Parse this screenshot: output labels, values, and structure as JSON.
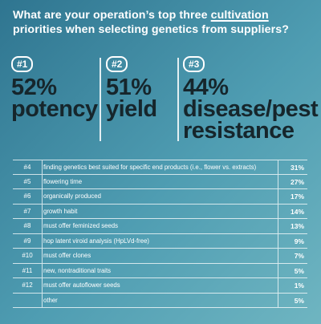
{
  "question": {
    "before": "What are your operation’s top three ",
    "underlined": "cultivation",
    "after": " priorities when selecting genetics from suppliers?"
  },
  "chart_data": {
    "type": "table",
    "top": [
      {
        "rank": "#1",
        "value": "52%",
        "label_lines": [
          "potency"
        ]
      },
      {
        "rank": "#2",
        "value": "51%",
        "label_lines": [
          "yield"
        ]
      },
      {
        "rank": "#3",
        "value": "44%",
        "label_lines": [
          "disease/pest",
          "resistance"
        ]
      }
    ],
    "rows": [
      {
        "rank": "#4",
        "label": "finding genetics best suited for specific end products (i.e., flower vs. extracts)",
        "value": "31%"
      },
      {
        "rank": "#5",
        "label": "flowering time",
        "value": "27%"
      },
      {
        "rank": "#6",
        "label": "organically produced",
        "value": "17%"
      },
      {
        "rank": "#7",
        "label": "growth habit",
        "value": "14%"
      },
      {
        "rank": "#8",
        "label": "must offer feminized seeds",
        "value": "13%"
      },
      {
        "rank": "#9",
        "label": "hop latent viroid analysis (HpLVd-free)",
        "value": "9%"
      },
      {
        "rank": "#10",
        "label": "must offer clones",
        "value": "7%"
      },
      {
        "rank": "#11",
        "label": "new, nontraditional traits",
        "value": "5%"
      },
      {
        "rank": "#12",
        "label": "must offer autoflower seeds",
        "value": "1%"
      },
      {
        "rank": "",
        "label": "other",
        "value": "5%"
      }
    ]
  }
}
